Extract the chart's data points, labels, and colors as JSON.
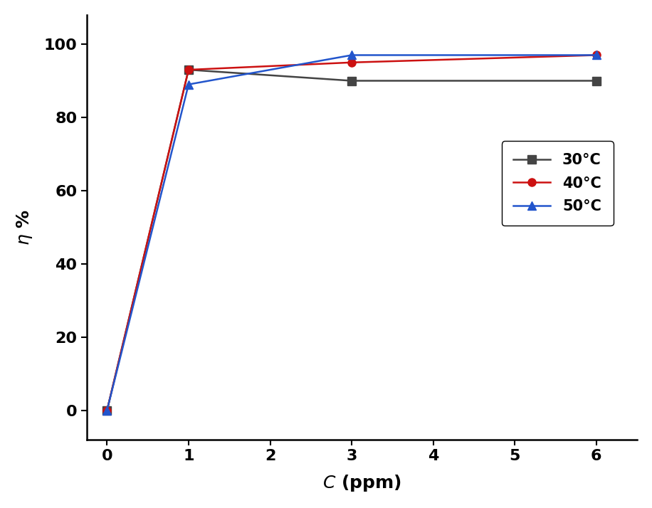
{
  "series": [
    {
      "label": "30°C",
      "x": [
        0,
        1,
        3,
        6
      ],
      "y": [
        0,
        93,
        90,
        90
      ],
      "color": "#444444",
      "marker": "s",
      "markersize": 8,
      "linewidth": 1.8,
      "zorder": 2
    },
    {
      "label": "40°C",
      "x": [
        0,
        1,
        3,
        6
      ],
      "y": [
        0,
        93,
        95,
        97
      ],
      "color": "#cc1111",
      "marker": "o",
      "markersize": 8,
      "linewidth": 1.8,
      "zorder": 3
    },
    {
      "label": "50°C",
      "x": [
        0,
        1,
        3,
        6
      ],
      "y": [
        0,
        89,
        97,
        97
      ],
      "color": "#2255cc",
      "marker": "^",
      "markersize": 9,
      "linewidth": 1.8,
      "zorder": 4
    }
  ],
  "xlabel": "$\\mathit{C}$ (ppm)",
  "ylabel": "$\\eta$ %",
  "xlim": [
    -0.25,
    6.5
  ],
  "ylim": [
    -8,
    108
  ],
  "xticks": [
    0,
    1,
    2,
    3,
    4,
    5,
    6
  ],
  "yticks": [
    0,
    20,
    40,
    60,
    80,
    100
  ],
  "figsize": [
    9.16,
    7.14
  ],
  "dpi": 100,
  "background_color": "#ffffff",
  "tick_fontsize": 16,
  "label_fontsize": 18,
  "legend_fontsize": 15
}
